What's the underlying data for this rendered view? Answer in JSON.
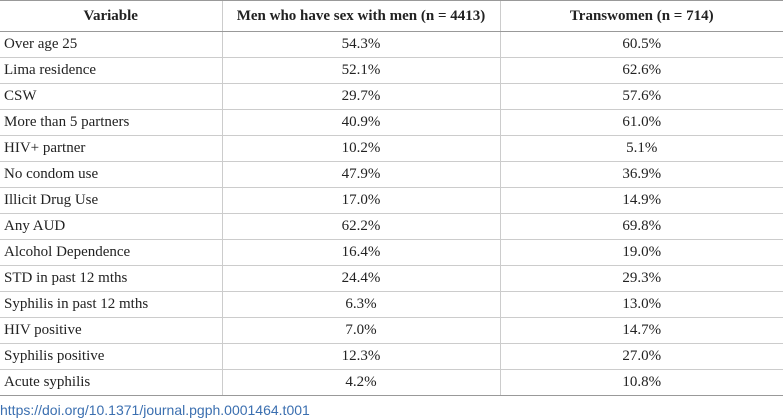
{
  "table": {
    "header": [
      "Variable",
      "Men who have sex with men (n = 4413)",
      "Transwomen (n = 714)"
    ],
    "rows": [
      [
        "Over age 25",
        "54.3%",
        "60.5%"
      ],
      [
        "Lima residence",
        "52.1%",
        "62.6%"
      ],
      [
        "CSW",
        "29.7%",
        "57.6%"
      ],
      [
        "More than 5 partners",
        "40.9%",
        "61.0%"
      ],
      [
        "HIV+ partner",
        "10.2%",
        "5.1%"
      ],
      [
        "No condom use",
        "47.9%",
        "36.9%"
      ],
      [
        "Illicit Drug Use",
        "17.0%",
        "14.9%"
      ],
      [
        "Any AUD",
        "62.2%",
        "69.8%"
      ],
      [
        "Alcohol Dependence",
        "16.4%",
        "19.0%"
      ],
      [
        "STD in past 12 mths",
        "24.4%",
        "29.3%"
      ],
      [
        "Syphilis in past 12 mths",
        "6.3%",
        "13.0%"
      ],
      [
        "HIV positive",
        "7.0%",
        "14.7%"
      ],
      [
        "Syphilis positive",
        "12.3%",
        "27.0%"
      ],
      [
        "Acute syphilis",
        "4.2%",
        "10.8%"
      ]
    ]
  },
  "doi": "https://doi.org/10.1371/journal.pgph.0001464.t001"
}
